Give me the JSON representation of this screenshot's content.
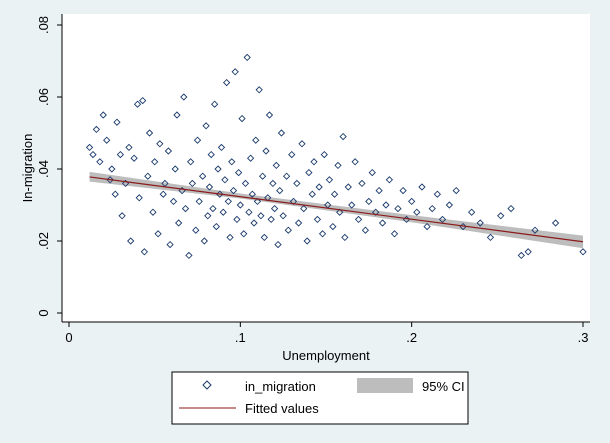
{
  "chart_data": {
    "type": "scatter",
    "title": "",
    "xlabel": "Unemployment",
    "ylabel": "In-migration",
    "xlim": [
      0,
      0.3
    ],
    "ylim": [
      0,
      0.08
    ],
    "x_ticks": [
      0,
      0.1,
      0.2,
      0.3
    ],
    "x_tick_labels": [
      "0",
      ".1",
      ".2",
      ".3"
    ],
    "y_ticks": [
      0,
      0.02,
      0.04,
      0.06,
      0.08
    ],
    "y_tick_labels": [
      "0",
      ".02",
      ".04",
      ".06",
      ".08"
    ],
    "grid": false,
    "legend_position": "bottom",
    "series": [
      {
        "name": "in_migration",
        "kind": "scatter",
        "marker": "hollow-diamond",
        "color": "#1a3a6b",
        "points_note_ids": "sample",
        "points": [
          [
            0.012,
            0.046
          ],
          [
            0.014,
            0.044
          ],
          [
            0.016,
            0.051
          ],
          [
            0.018,
            0.042
          ],
          [
            0.02,
            0.055
          ],
          [
            0.022,
            0.048
          ],
          [
            0.024,
            0.037
          ],
          [
            0.025,
            0.04
          ],
          [
            0.027,
            0.033
          ],
          [
            0.028,
            0.053
          ],
          [
            0.03,
            0.044
          ],
          [
            0.031,
            0.027
          ],
          [
            0.033,
            0.036
          ],
          [
            0.035,
            0.046
          ],
          [
            0.036,
            0.02
          ],
          [
            0.038,
            0.043
          ],
          [
            0.04,
            0.058
          ],
          [
            0.041,
            0.032
          ],
          [
            0.043,
            0.059
          ],
          [
            0.044,
            0.017
          ],
          [
            0.046,
            0.038
          ],
          [
            0.047,
            0.05
          ],
          [
            0.049,
            0.028
          ],
          [
            0.05,
            0.042
          ],
          [
            0.052,
            0.022
          ],
          [
            0.053,
            0.047
          ],
          [
            0.055,
            0.033
          ],
          [
            0.056,
            0.036
          ],
          [
            0.058,
            0.045
          ],
          [
            0.059,
            0.019
          ],
          [
            0.061,
            0.031
          ],
          [
            0.062,
            0.04
          ],
          [
            0.063,
            0.055
          ],
          [
            0.064,
            0.025
          ],
          [
            0.066,
            0.034
          ],
          [
            0.067,
            0.06
          ],
          [
            0.068,
            0.029
          ],
          [
            0.07,
            0.016
          ],
          [
            0.071,
            0.042
          ],
          [
            0.072,
            0.036
          ],
          [
            0.074,
            0.023
          ],
          [
            0.075,
            0.048
          ],
          [
            0.076,
            0.031
          ],
          [
            0.078,
            0.038
          ],
          [
            0.079,
            0.02
          ],
          [
            0.08,
            0.052
          ],
          [
            0.081,
            0.027
          ],
          [
            0.082,
            0.035
          ],
          [
            0.083,
            0.044
          ],
          [
            0.084,
            0.029
          ],
          [
            0.085,
            0.058
          ],
          [
            0.086,
            0.024
          ],
          [
            0.087,
            0.04
          ],
          [
            0.088,
            0.033
          ],
          [
            0.089,
            0.046
          ],
          [
            0.09,
            0.028
          ],
          [
            0.091,
            0.037
          ],
          [
            0.092,
            0.064
          ],
          [
            0.093,
            0.031
          ],
          [
            0.094,
            0.021
          ],
          [
            0.095,
            0.042
          ],
          [
            0.096,
            0.034
          ],
          [
            0.097,
            0.067
          ],
          [
            0.098,
            0.026
          ],
          [
            0.099,
            0.039
          ],
          [
            0.1,
            0.03
          ],
          [
            0.101,
            0.054
          ],
          [
            0.102,
            0.022
          ],
          [
            0.103,
            0.036
          ],
          [
            0.104,
            0.071
          ],
          [
            0.105,
            0.028
          ],
          [
            0.106,
            0.043
          ],
          [
            0.107,
            0.033
          ],
          [
            0.108,
            0.025
          ],
          [
            0.109,
            0.048
          ],
          [
            0.11,
            0.031
          ],
          [
            0.111,
            0.062
          ],
          [
            0.112,
            0.027
          ],
          [
            0.113,
            0.038
          ],
          [
            0.114,
            0.021
          ],
          [
            0.115,
            0.045
          ],
          [
            0.116,
            0.032
          ],
          [
            0.117,
            0.055
          ],
          [
            0.118,
            0.026
          ],
          [
            0.119,
            0.036
          ],
          [
            0.12,
            0.029
          ],
          [
            0.121,
            0.041
          ],
          [
            0.122,
            0.019
          ],
          [
            0.123,
            0.034
          ],
          [
            0.124,
            0.05
          ],
          [
            0.125,
            0.027
          ],
          [
            0.127,
            0.038
          ],
          [
            0.128,
            0.023
          ],
          [
            0.13,
            0.044
          ],
          [
            0.131,
            0.031
          ],
          [
            0.133,
            0.036
          ],
          [
            0.134,
            0.025
          ],
          [
            0.136,
            0.047
          ],
          [
            0.137,
            0.029
          ],
          [
            0.139,
            0.02
          ],
          [
            0.14,
            0.039
          ],
          [
            0.142,
            0.033
          ],
          [
            0.143,
            0.042
          ],
          [
            0.145,
            0.026
          ],
          [
            0.146,
            0.035
          ],
          [
            0.148,
            0.022
          ],
          [
            0.149,
            0.044
          ],
          [
            0.151,
            0.03
          ],
          [
            0.152,
            0.037
          ],
          [
            0.154,
            0.024
          ],
          [
            0.155,
            0.033
          ],
          [
            0.157,
            0.041
          ],
          [
            0.158,
            0.028
          ],
          [
            0.16,
            0.049
          ],
          [
            0.161,
            0.021
          ],
          [
            0.163,
            0.035
          ],
          [
            0.165,
            0.03
          ],
          [
            0.167,
            0.042
          ],
          [
            0.169,
            0.026
          ],
          [
            0.171,
            0.036
          ],
          [
            0.173,
            0.023
          ],
          [
            0.175,
            0.031
          ],
          [
            0.177,
            0.039
          ],
          [
            0.179,
            0.028
          ],
          [
            0.181,
            0.034
          ],
          [
            0.183,
            0.025
          ],
          [
            0.185,
            0.03
          ],
          [
            0.187,
            0.037
          ],
          [
            0.19,
            0.022
          ],
          [
            0.192,
            0.029
          ],
          [
            0.195,
            0.034
          ],
          [
            0.197,
            0.026
          ],
          [
            0.2,
            0.031
          ],
          [
            0.203,
            0.028
          ],
          [
            0.206,
            0.035
          ],
          [
            0.209,
            0.024
          ],
          [
            0.212,
            0.029
          ],
          [
            0.215,
            0.033
          ],
          [
            0.218,
            0.026
          ],
          [
            0.222,
            0.03
          ],
          [
            0.226,
            0.034
          ],
          [
            0.23,
            0.024
          ],
          [
            0.235,
            0.028
          ],
          [
            0.24,
            0.025
          ],
          [
            0.246,
            0.021
          ],
          [
            0.252,
            0.027
          ],
          [
            0.258,
            0.029
          ],
          [
            0.264,
            0.016
          ],
          [
            0.268,
            0.017
          ],
          [
            0.272,
            0.023
          ],
          [
            0.284,
            0.025
          ],
          [
            0.3,
            0.017
          ]
        ]
      },
      {
        "name": "Fitted values",
        "kind": "line",
        "color": "#8b1a1a",
        "x": [
          0.012,
          0.3
        ],
        "values": [
          0.0378,
          0.0198
        ]
      },
      {
        "name": "95% CI",
        "kind": "band",
        "color": "#bdbdbd",
        "x": [
          0.012,
          0.1,
          0.2,
          0.3
        ],
        "lower": [
          0.0365,
          0.0318,
          0.0252,
          0.018
        ],
        "upper": [
          0.0392,
          0.0332,
          0.0272,
          0.0215
        ]
      }
    ]
  },
  "legend": {
    "items": [
      {
        "label": "in_migration"
      },
      {
        "label": "95% CI"
      },
      {
        "label": "Fitted values"
      }
    ]
  }
}
